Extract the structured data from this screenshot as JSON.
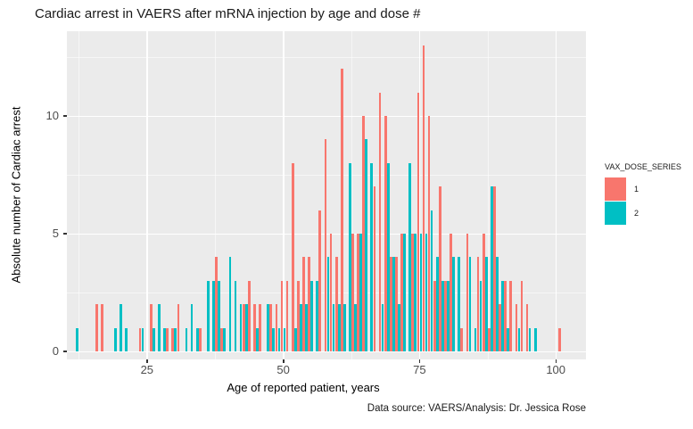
{
  "title": "Cardiac arrest in VAERS after mRNA injection by age and dose #",
  "caption": "Data source: VAERS/Analysis: Dr. Jessica Rose",
  "colors": {
    "dose1": "#F8766D",
    "dose2": "#00BFC4",
    "panel_background": "#EBEBEB",
    "gridline": "#FFFFFF",
    "tick_text": "#4D4D4D"
  },
  "legend": {
    "title": "VAX_DOSE_SERIES",
    "entries": [
      {
        "label": "1",
        "color": "#F8766D"
      },
      {
        "label": "2",
        "color": "#00BFC4"
      }
    ]
  },
  "chart_data": {
    "type": "bar",
    "title": "Cardiac arrest in VAERS after mRNA injection by age and dose #",
    "xlabel": "Age of reported patient, years",
    "ylabel": "Absolute number of Cardiac arrest",
    "caption": "Data source: VAERS/Analysis: Dr. Jessica Rose",
    "legend_title": "VAX_DOSE_SERIES",
    "legend_position": "right",
    "grid": true,
    "x_ticks": [
      25,
      50,
      75,
      100
    ],
    "y_ticks": [
      0,
      5,
      10
    ],
    "x_minor_ticks": [
      12.5,
      37.5,
      62.5,
      87.5
    ],
    "y_minor_ticks": [
      2.5,
      7.5,
      12.5
    ],
    "xlim": [
      10.3,
      105.5
    ],
    "ylim": [
      0,
      13.9
    ],
    "series_names": [
      "1",
      "2"
    ],
    "columns": [
      "age",
      "dose1",
      "dose2"
    ],
    "points": [
      [
        12,
        0,
        1
      ],
      [
        16,
        2,
        0
      ],
      [
        17,
        2,
        0
      ],
      [
        19,
        0,
        1
      ],
      [
        20,
        0,
        2
      ],
      [
        21,
        0,
        1
      ],
      [
        24,
        1,
        1
      ],
      [
        26,
        2,
        1
      ],
      [
        27,
        0,
        2
      ],
      [
        28,
        0,
        1
      ],
      [
        29,
        1,
        0
      ],
      [
        30,
        1,
        1
      ],
      [
        31,
        2,
        0
      ],
      [
        32,
        0,
        1
      ],
      [
        33,
        0,
        2
      ],
      [
        34,
        0,
        1
      ],
      [
        35,
        1,
        0
      ],
      [
        36,
        0,
        3
      ],
      [
        37,
        0,
        3
      ],
      [
        38,
        4,
        3
      ],
      [
        39,
        1,
        1
      ],
      [
        40,
        0,
        4
      ],
      [
        41,
        0,
        3
      ],
      [
        42,
        0,
        2
      ],
      [
        43,
        2,
        2
      ],
      [
        44,
        3,
        0
      ],
      [
        45,
        2,
        1
      ],
      [
        46,
        2,
        0
      ],
      [
        47,
        0,
        2
      ],
      [
        48,
        2,
        1
      ],
      [
        49,
        2,
        1
      ],
      [
        50,
        3,
        1
      ],
      [
        51,
        3,
        0
      ],
      [
        52,
        8,
        1
      ],
      [
        53,
        3,
        2
      ],
      [
        54,
        4,
        2
      ],
      [
        55,
        4,
        3
      ],
      [
        56,
        0,
        3
      ],
      [
        57,
        6,
        0
      ],
      [
        58,
        9,
        4
      ],
      [
        59,
        5,
        2
      ],
      [
        60,
        4,
        2
      ],
      [
        61,
        12,
        2
      ],
      [
        62,
        0,
        8
      ],
      [
        63,
        5,
        2
      ],
      [
        64,
        5,
        5
      ],
      [
        65,
        10,
        9
      ],
      [
        66,
        0,
        8
      ],
      [
        67,
        7,
        0
      ],
      [
        68,
        11,
        2
      ],
      [
        69,
        10,
        8
      ],
      [
        70,
        4,
        4
      ],
      [
        71,
        4,
        2
      ],
      [
        72,
        5,
        5
      ],
      [
        73,
        0,
        8
      ],
      [
        74,
        5,
        5
      ],
      [
        75,
        11,
        5
      ],
      [
        76,
        13,
        5
      ],
      [
        77,
        10,
        6
      ],
      [
        78,
        3,
        4
      ],
      [
        79,
        7,
        3
      ],
      [
        80,
        3,
        3
      ],
      [
        81,
        5,
        4
      ],
      [
        82,
        0,
        4
      ],
      [
        83,
        1,
        0
      ],
      [
        84,
        5,
        4
      ],
      [
        85,
        0,
        1
      ],
      [
        86,
        4,
        3
      ],
      [
        87,
        5,
        4
      ],
      [
        88,
        1,
        7
      ],
      [
        89,
        7,
        4
      ],
      [
        90,
        2,
        3
      ],
      [
        91,
        3,
        1
      ],
      [
        92,
        3,
        0
      ],
      [
        93,
        2,
        1
      ],
      [
        94,
        3,
        0
      ],
      [
        95,
        2,
        1
      ],
      [
        96,
        0,
        1
      ],
      [
        101,
        1,
        0
      ]
    ]
  }
}
